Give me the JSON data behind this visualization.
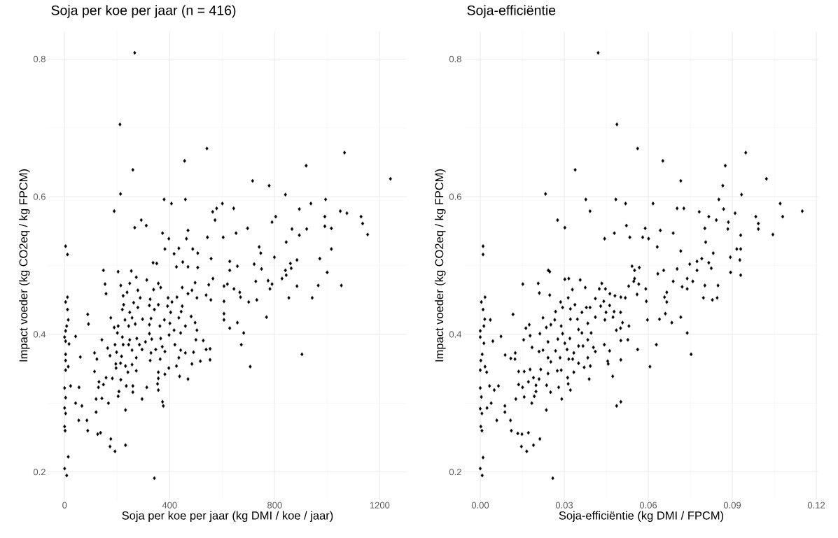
{
  "chart_data": [
    {
      "type": "scatter",
      "title": "Soja per koe per jaar (n = 416)",
      "xlabel": "Soja per koe per jaar (kg DMI / koe / jaar)",
      "ylabel": "Impact voeder (kg CO2eq / kg FPCM)",
      "color": "#000000",
      "marker": "diamond",
      "grid": true,
      "xlim": [
        -62,
        1303
      ],
      "ylim": [
        0.16,
        0.84
      ],
      "xticks": [
        0,
        400,
        800,
        1200
      ],
      "yticks": [
        0.2,
        0.4,
        0.6,
        0.8
      ],
      "x": [
        267,
        211,
        260,
        213,
        189,
        292,
        267,
        311,
        373,
        379,
        407,
        457,
        460,
        470,
        464,
        397,
        542,
        544,
        564,
        579,
        601,
        573,
        604,
        644,
        653,
        697,
        716,
        779,
        841,
        790,
        804,
        844,
        866,
        894,
        894,
        920,
        938,
        922,
        994,
        991,
        991,
        1016,
        1050,
        1075,
        1066,
        1129,
        1135,
        1154,
        1241,
        4,
        11,
        1016,
        741,
        747,
        972,
        885,
        799,
        860,
        863,
        841,
        844,
        828,
        1000,
        885,
        966,
        1054,
        854,
        943,
        769,
        904,
        707,
        673,
        682,
        658,
        629,
        607,
        607,
        607,
        701,
        732,
        670,
        667,
        645,
        607,
        620,
        728,
        782,
        775,
        790,
        750,
        722,
        658,
        629,
        629,
        558,
        507,
        470,
        426,
        450,
        507,
        488,
        417,
        435,
        382,
        351,
        337,
        565,
        549,
        497,
        448,
        485,
        470,
        504,
        539,
        557,
        554,
        554,
        517,
        485,
        470,
        438,
        397,
        426,
        382,
        357,
        357,
        354,
        357,
        373,
        376,
        342,
        295,
        313,
        260,
        260,
        235,
        232,
        232,
        192,
        173,
        176,
        137,
        126,
        88,
        85,
        54,
        66,
        42,
        120,
        120,
        142,
        167,
        204,
        207,
        148,
        129,
        131,
        158,
        182,
        214,
        114,
        123,
        114,
        60,
        23,
        55,
        0,
        4,
        0,
        4,
        0,
        2,
        14,
        0,
        8,
        4,
        4,
        4,
        14,
        17,
        4,
        0,
        42,
        4,
        8,
        14,
        11,
        4,
        11,
        88,
        91,
        176,
        142,
        148,
        204,
        254,
        154,
        158,
        214,
        248,
        273,
        313,
        357,
        366,
        339,
        279,
        238,
        223,
        288,
        326,
        394,
        428,
        409,
        357,
        323,
        263,
        225,
        220,
        248,
        279,
        342,
        392,
        448,
        404,
        444,
        435,
        482,
        497,
        504,
        460,
        442,
        417,
        380,
        401,
        363,
        329,
        297,
        257,
        269,
        230,
        244,
        204,
        189,
        201,
        220,
        248,
        275,
        323,
        323,
        332,
        308,
        285,
        295,
        257,
        244,
        223,
        192,
        164,
        198,
        173,
        217,
        273,
        329,
        347,
        372,
        366,
        398,
        420,
        382,
        442,
        460,
        491,
        500,
        528,
        539,
        435,
        364,
        326,
        213,
        196,
        232,
        257,
        273,
        241,
        195
      ],
      "values": [
        0.809,
        0.705,
        0.639,
        0.604,
        0.579,
        0.566,
        0.555,
        0.558,
        0.547,
        0.596,
        0.59,
        0.652,
        0.596,
        0.551,
        0.539,
        0.539,
        0.67,
        0.541,
        0.578,
        0.583,
        0.59,
        0.566,
        0.541,
        0.583,
        0.547,
        0.554,
        0.623,
        0.616,
        0.603,
        0.563,
        0.571,
        0.534,
        0.553,
        0.582,
        0.544,
        0.645,
        0.59,
        0.553,
        0.596,
        0.571,
        0.557,
        0.554,
        0.579,
        0.576,
        0.664,
        0.571,
        0.561,
        0.545,
        0.626,
        0.528,
        0.516,
        0.524,
        0.527,
        0.518,
        0.51,
        0.508,
        0.512,
        0.503,
        0.496,
        0.493,
        0.486,
        0.481,
        0.49,
        0.47,
        0.471,
        0.471,
        0.453,
        0.453,
        0.425,
        0.371,
        0.353,
        0.385,
        0.402,
        0.417,
        0.409,
        0.421,
        0.43,
        0.448,
        0.447,
        0.45,
        0.454,
        0.461,
        0.466,
        0.47,
        0.473,
        0.477,
        0.466,
        0.478,
        0.473,
        0.495,
        0.502,
        0.499,
        0.493,
        0.506,
        0.51,
        0.497,
        0.498,
        0.498,
        0.505,
        0.518,
        0.524,
        0.517,
        0.525,
        0.524,
        0.503,
        0.504,
        0.481,
        0.472,
        0.475,
        0.468,
        0.464,
        0.459,
        0.453,
        0.457,
        0.45,
        0.379,
        0.363,
        0.361,
        0.357,
        0.335,
        0.339,
        0.351,
        0.354,
        0.342,
        0.345,
        0.336,
        0.328,
        0.319,
        0.302,
        0.296,
        0.191,
        0.306,
        0.323,
        0.325,
        0.316,
        0.325,
        0.29,
        0.239,
        0.23,
        0.237,
        0.248,
        0.257,
        0.255,
        0.26,
        0.275,
        0.275,
        0.296,
        0.3,
        0.287,
        0.306,
        0.307,
        0.3,
        0.31,
        0.317,
        0.327,
        0.323,
        0.331,
        0.337,
        0.336,
        0.334,
        0.346,
        0.364,
        0.373,
        0.367,
        0.325,
        0.323,
        0.322,
        0.308,
        0.293,
        0.285,
        0.266,
        0.26,
        0.222,
        0.205,
        0.195,
        0.348,
        0.362,
        0.371,
        0.353,
        0.386,
        0.39,
        0.396,
        0.397,
        0.405,
        0.412,
        0.421,
        0.436,
        0.447,
        0.454,
        0.429,
        0.415,
        0.424,
        0.392,
        0.493,
        0.491,
        0.492,
        0.473,
        0.459,
        0.471,
        0.474,
        0.483,
        0.479,
        0.474,
        0.468,
        0.465,
        0.464,
        0.461,
        0.456,
        0.453,
        0.451,
        0.453,
        0.454,
        0.447,
        0.443,
        0.442,
        0.446,
        0.443,
        0.436,
        0.432,
        0.439,
        0.436,
        0.441,
        0.441,
        0.432,
        0.433,
        0.424,
        0.426,
        0.417,
        0.406,
        0.412,
        0.402,
        0.406,
        0.421,
        0.416,
        0.412,
        0.423,
        0.422,
        0.424,
        0.415,
        0.421,
        0.412,
        0.412,
        0.41,
        0.402,
        0.396,
        0.392,
        0.394,
        0.414,
        0.401,
        0.393,
        0.389,
        0.385,
        0.378,
        0.377,
        0.385,
        0.385,
        0.385,
        0.38,
        0.374,
        0.369,
        0.368,
        0.366,
        0.373,
        0.378,
        0.382,
        0.394,
        0.399,
        0.385,
        0.375,
        0.377,
        0.373,
        0.374,
        0.392,
        0.391,
        0.378,
        0.366,
        0.364,
        0.362,
        0.358,
        0.351,
        0.354,
        0.356,
        0.347,
        0.345,
        0.357
      ]
    },
    {
      "type": "scatter",
      "title": "Soja-efficiëntie",
      "xlabel": "Soja-efficiëntie (kg DMI / FPCM)",
      "ylabel": "Impact voeder (kg CO2eq / kg FPCM)",
      "color": "#000000",
      "marker": "diamond",
      "grid": true,
      "xlim": [
        -0.00575,
        0.12075
      ],
      "ylim": [
        0.16,
        0.84
      ],
      "xticks": [
        {
          "value": 0,
          "label": "0.00"
        },
        0.03,
        0.06,
        0.09,
        0.12
      ],
      "yticks": [
        0.2,
        0.4,
        0.6,
        0.8
      ],
      "x": [
        0.0421,
        0.0488,
        0.0562,
        0.0339,
        0.0652,
        0.0233,
        0.0948,
        0.0875,
        0.0716,
        0.0866,
        0.1022,
        0.0933,
        0.0377,
        0.0484,
        0.0392,
        0.0519,
        0.0617,
        0.0703,
        0.0727,
        0.0782,
        0.0816,
        0.0852,
        0.0869,
        0.0843,
        0.091,
        0.0886,
        0.0884,
        0.093,
        0.0984,
        0.0993,
        0.0993,
        0.1045,
        0.1071,
        0.108,
        0.115,
        0.0802,
        0.0689,
        0.0643,
        0.0589,
        0.0601,
        0.058,
        0.0534,
        0.0522,
        0.0479,
        0.0444,
        0.0276,
        0.0302,
        0.0805,
        0.001,
        0.001,
        0.093,
        0.0916,
        0.0893,
        0.0927,
        0.0894,
        0.093,
        0.0832,
        0.0816,
        0.0825,
        0.0791,
        0.0774,
        0.0748,
        0.0774,
        0.0716,
        0.0632,
        0.0703,
        0.0655,
        0.0634,
        0.0689,
        0.0739,
        0.0759,
        0.0721,
        0.0739,
        0.0802,
        0.0849,
        0.0797,
        0.0829,
        0.0846,
        0.0666,
        0.0658,
        0.0666,
        0.0661,
        0.064,
        0.0684,
        0.0716,
        0.0739,
        0.0753,
        0.0629,
        0.0606,
        0.0562,
        0.0597,
        0.0593,
        0.0591,
        0.056,
        0.0566,
        0.0548,
        0.053,
        0.0551,
        0.0542,
        0.0568,
        0.0551,
        0.0518,
        0.0502,
        0.0481,
        0.0463,
        0.0447,
        0.0425,
        0.0434,
        0.0375,
        0.0357,
        0.0329,
        0.0314,
        0.0316,
        0.0302,
        0.0248,
        0.0243,
        0.0207,
        0.0211,
        0.0248,
        0.0152,
        0.0117,
        0.0074,
        0.0045,
        0.0036,
        0.0017,
        0.0004,
        0.001,
        0.0016,
        0.0013,
        0,
        0,
        0.0013,
        0.0007,
        0.0002,
        0.0017,
        0,
        0.0023,
        0,
        0.0004,
        0.0033,
        0.0065,
        0.005,
        0.0039,
        0.0024,
        0,
        0.0006,
        0.0002,
        0.0006,
        0.001,
        0,
        0.0007,
        0.0088,
        0.0088,
        0.0059,
        0.0108,
        0.0111,
        0.0134,
        0.0149,
        0.0172,
        0.0147,
        0.0166,
        0.019,
        0.0213,
        0.0236,
        0.0259,
        0.0184,
        0.0127,
        0.0157,
        0.0193,
        0.0151,
        0.0137,
        0.0172,
        0.019,
        0.021,
        0.0199,
        0.0199,
        0.0237,
        0.0251,
        0.028,
        0.0291,
        0.0314,
        0.0322,
        0.0312,
        0.0334,
        0.0389,
        0.0473,
        0.0487,
        0.0502,
        0.0502,
        0.0457,
        0.0455,
        0.0393,
        0.0371,
        0.0384,
        0.0351,
        0.033,
        0.0316,
        0.0289,
        0.0275,
        0.0242,
        0.0216,
        0.0178,
        0.0157,
        0.0137,
        0.0124,
        0.0089,
        0.0109,
        0.0125,
        0.0155,
        0.0178,
        0.0163,
        0.0175,
        0.0224,
        0.0213,
        0.0185,
        0.021,
        0.0224,
        0.0242,
        0.0252,
        0.0269,
        0.0285,
        0.0242,
        0.0236,
        0.0252,
        0.0266,
        0.0269,
        0.0287,
        0.0294,
        0.0289,
        0.0294,
        0.0277,
        0.0302,
        0.031,
        0.032,
        0.0334,
        0.0322,
        0.0338,
        0.0322,
        0.0347,
        0.0351,
        0.0363,
        0.0384,
        0.0396,
        0.0384,
        0.0367,
        0.0351,
        0.0404,
        0.0411,
        0.0443,
        0.0462,
        0.0363,
        0.0379,
        0.0411,
        0.0411,
        0.043,
        0.0441,
        0.0462,
        0.0449,
        0.0445,
        0.0474,
        0.0478,
        0.0501,
        0.0508,
        0.0531,
        0.0501,
        0.0486,
        0.0502,
        0.0527,
        0.0392
      ],
      "values": [
        0.809,
        0.705,
        0.67,
        0.639,
        0.652,
        0.604,
        0.664,
        0.645,
        0.623,
        0.616,
        0.626,
        0.603,
        0.596,
        0.596,
        0.579,
        0.59,
        0.59,
        0.583,
        0.583,
        0.578,
        0.571,
        0.596,
        0.582,
        0.566,
        0.576,
        0.563,
        0.553,
        0.544,
        0.571,
        0.561,
        0.553,
        0.545,
        0.59,
        0.571,
        0.579,
        0.554,
        0.547,
        0.551,
        0.554,
        0.539,
        0.541,
        0.541,
        0.558,
        0.547,
        0.539,
        0.566,
        0.555,
        0.534,
        0.528,
        0.516,
        0.524,
        0.524,
        0.512,
        0.508,
        0.49,
        0.486,
        0.518,
        0.504,
        0.496,
        0.51,
        0.506,
        0.502,
        0.493,
        0.521,
        0.527,
        0.495,
        0.493,
        0.488,
        0.477,
        0.481,
        0.477,
        0.469,
        0.466,
        0.471,
        0.471,
        0.453,
        0.45,
        0.453,
        0.461,
        0.454,
        0.447,
        0.43,
        0.422,
        0.417,
        0.425,
        0.402,
        0.371,
        0.385,
        0.353,
        0.378,
        0.421,
        0.448,
        0.466,
        0.458,
        0.473,
        0.477,
        0.47,
        0.481,
        0.499,
        0.497,
        0.493,
        0.453,
        0.454,
        0.456,
        0.459,
        0.466,
        0.466,
        0.474,
        0.468,
        0.479,
        0.465,
        0.453,
        0.481,
        0.48,
        0.491,
        0.493,
        0.474,
        0.46,
        0.457,
        0.473,
        0.429,
        0.397,
        0.39,
        0.421,
        0.454,
        0.447,
        0.436,
        0.422,
        0.412,
        0.405,
        0.396,
        0.387,
        0.371,
        0.362,
        0.353,
        0.348,
        0.345,
        0.322,
        0.309,
        0.325,
        0.325,
        0.319,
        0.3,
        0.293,
        0.292,
        0.285,
        0.266,
        0.26,
        0.221,
        0.205,
        0.195,
        0.296,
        0.287,
        0.275,
        0.275,
        0.26,
        0.256,
        0.255,
        0.257,
        0.237,
        0.23,
        0.239,
        0.248,
        0.29,
        0.191,
        0.3,
        0.306,
        0.309,
        0.31,
        0.323,
        0.327,
        0.331,
        0.337,
        0.335,
        0.326,
        0.317,
        0.326,
        0.316,
        0.323,
        0.306,
        0.328,
        0.319,
        0.337,
        0.345,
        0.335,
        0.339,
        0.296,
        0.302,
        0.363,
        0.357,
        0.361,
        0.354,
        0.352,
        0.366,
        0.358,
        0.364,
        0.364,
        0.348,
        0.347,
        0.343,
        0.349,
        0.349,
        0.346,
        0.346,
        0.364,
        0.37,
        0.365,
        0.373,
        0.392,
        0.398,
        0.409,
        0.414,
        0.424,
        0.401,
        0.381,
        0.375,
        0.377,
        0.366,
        0.36,
        0.376,
        0.366,
        0.389,
        0.41,
        0.414,
        0.421,
        0.433,
        0.447,
        0.439,
        0.412,
        0.401,
        0.393,
        0.387,
        0.378,
        0.394,
        0.373,
        0.437,
        0.443,
        0.422,
        0.422,
        0.407,
        0.402,
        0.416,
        0.402,
        0.392,
        0.383,
        0.383,
        0.381,
        0.375,
        0.385,
        0.376,
        0.432,
        0.439,
        0.452,
        0.425,
        0.441,
        0.448,
        0.442,
        0.432,
        0.421,
        0.425,
        0.433,
        0.432,
        0.417,
        0.412,
        0.409,
        0.406,
        0.391,
        0.392,
        0.439
      ]
    }
  ]
}
